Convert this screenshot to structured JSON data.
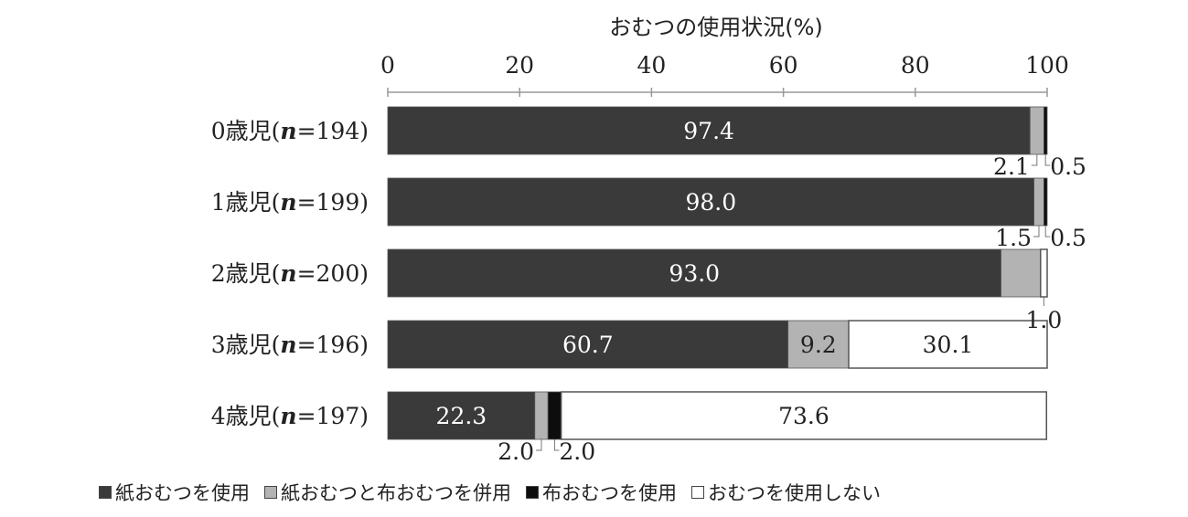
{
  "chart_data": {
    "type": "bar",
    "orientation": "horizontal",
    "stacked": true,
    "title": "おむつの使用状況(%)",
    "xlim": [
      0,
      100
    ],
    "xticks": [
      "0",
      "20",
      "40",
      "60",
      "80",
      "100"
    ],
    "categories": [
      "0歳児(n=194)",
      "1歳児(n=199)",
      "2歳児(n=200)",
      "3歳児(n=196)",
      "4歳児(n=197)"
    ],
    "series": [
      {
        "name": "紙おむつを使用",
        "values": [
          97.4,
          98.0,
          93.0,
          60.7,
          22.3
        ],
        "labels": [
          "97.4",
          "98.0",
          "93.0",
          "60.7",
          "22.3"
        ],
        "color": "#3a3a3a"
      },
      {
        "name": "紙おむつと布おむつを併用",
        "values": [
          2.1,
          1.5,
          6.0,
          9.2,
          2.0
        ],
        "labels": [
          "2.1",
          "1.5",
          "6.0",
          "9.2",
          "2.0"
        ],
        "color": "#b3b3b3"
      },
      {
        "name": "布おむつを使用",
        "values": [
          0.5,
          0.5,
          0.0,
          0.0,
          2.0
        ],
        "labels": [
          "0.5",
          "0.5",
          "",
          "",
          "2.0"
        ],
        "color": "#0d0d0d"
      },
      {
        "name": "おむつを使用しない",
        "values": [
          0.0,
          0.0,
          1.0,
          30.1,
          73.6
        ],
        "labels": [
          "",
          "",
          "1.0",
          "30.1",
          "73.6"
        ],
        "color": "#ffffff"
      }
    ],
    "grid": false,
    "legend_position": "bottom"
  }
}
